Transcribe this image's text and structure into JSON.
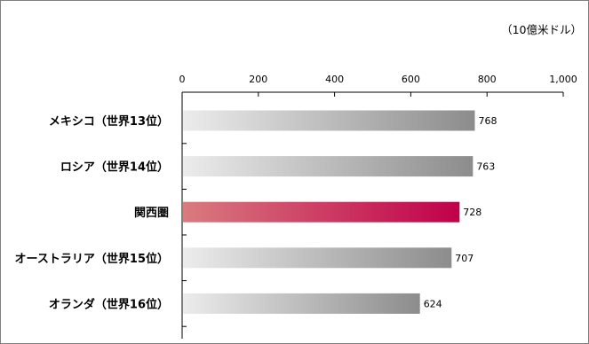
{
  "chart_data": {
    "type": "bar",
    "orientation": "horizontal",
    "unit_label": "（10億米ドル）",
    "categories": [
      "メキシコ（世界13位）",
      "ロシア（世界14位）",
      "関西圏",
      "オーストラリア（世界15位）",
      "オランダ（世界16位）"
    ],
    "values": [
      768,
      763,
      728,
      707,
      624
    ],
    "value_labels": [
      "768",
      "763",
      "728",
      "707",
      "624"
    ],
    "highlight_index": 2,
    "xlim": [
      0,
      1000
    ],
    "ticks": [
      {
        "value": 0,
        "label": "0"
      },
      {
        "value": 200,
        "label": "200"
      },
      {
        "value": 400,
        "label": "400"
      },
      {
        "value": 600,
        "label": "600"
      },
      {
        "value": 800,
        "label": "800"
      },
      {
        "value": 1000,
        "label": "1,000"
      }
    ],
    "axis_position": "top",
    "grid": false,
    "legend": "none",
    "colors": {
      "gray_start": "#ececec",
      "gray_end": "#8c8c8c",
      "highlight_start": "#d97b7f",
      "highlight_end": "#c0004a"
    }
  }
}
